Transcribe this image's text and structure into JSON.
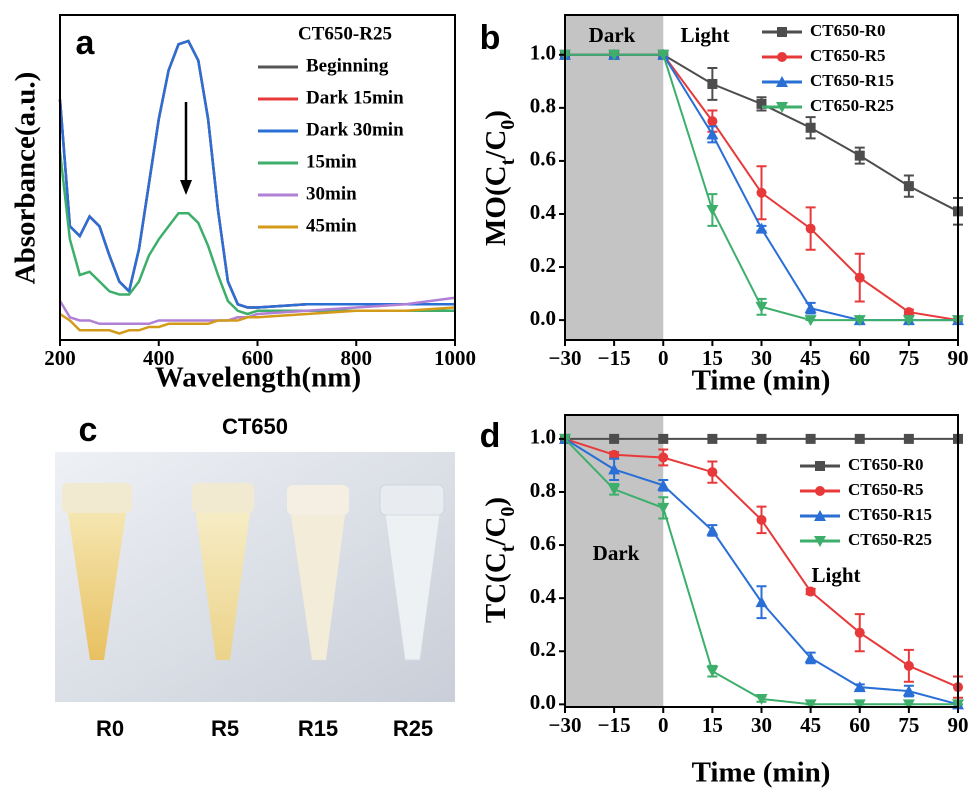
{
  "chart_data": [
    {
      "type": "line",
      "panel_label": "a",
      "x_label": "Wavelength(nm)",
      "y_label": "Absorbance(a.u.)",
      "legend_title": "CT650-R25",
      "x": [
        200,
        220,
        240,
        260,
        280,
        300,
        320,
        340,
        360,
        380,
        400,
        420,
        440,
        460,
        480,
        500,
        520,
        540,
        560,
        580,
        600,
        700,
        800,
        900,
        1000
      ],
      "xlim": [
        200,
        1000
      ],
      "xticks": [
        200,
        400,
        600,
        800,
        1000
      ],
      "ylim": [
        0,
        1
      ],
      "series": [
        {
          "name": "Beginning",
          "color": "#555555",
          "values": [
            0.74,
            0.35,
            0.32,
            0.38,
            0.35,
            0.26,
            0.18,
            0.15,
            0.28,
            0.48,
            0.68,
            0.83,
            0.91,
            0.92,
            0.86,
            0.68,
            0.4,
            0.18,
            0.11,
            0.1,
            0.1,
            0.11,
            0.11,
            0.11,
            0.11
          ]
        },
        {
          "name": "Dark 15min",
          "color": "#e8393a",
          "values": [
            0.74,
            0.35,
            0.32,
            0.38,
            0.35,
            0.26,
            0.18,
            0.15,
            0.28,
            0.48,
            0.68,
            0.83,
            0.91,
            0.92,
            0.86,
            0.68,
            0.4,
            0.18,
            0.11,
            0.1,
            0.1,
            0.11,
            0.11,
            0.11,
            0.11
          ]
        },
        {
          "name": "Dark 30min",
          "color": "#2a6fd6",
          "values": [
            0.74,
            0.35,
            0.32,
            0.38,
            0.35,
            0.26,
            0.18,
            0.15,
            0.28,
            0.48,
            0.68,
            0.83,
            0.91,
            0.92,
            0.86,
            0.68,
            0.4,
            0.18,
            0.11,
            0.1,
            0.1,
            0.11,
            0.11,
            0.11,
            0.11
          ]
        },
        {
          "name": "15min",
          "color": "#3daf6b",
          "values": [
            0.58,
            0.31,
            0.2,
            0.21,
            0.18,
            0.15,
            0.14,
            0.14,
            0.18,
            0.26,
            0.31,
            0.35,
            0.39,
            0.39,
            0.36,
            0.29,
            0.2,
            0.12,
            0.09,
            0.08,
            0.09,
            0.09,
            0.09,
            0.09,
            0.09
          ]
        },
        {
          "name": "30min",
          "color": "#b07fd6",
          "values": [
            0.12,
            0.07,
            0.06,
            0.06,
            0.05,
            0.05,
            0.05,
            0.05,
            0.05,
            0.05,
            0.06,
            0.06,
            0.06,
            0.06,
            0.06,
            0.06,
            0.06,
            0.06,
            0.07,
            0.07,
            0.08,
            0.09,
            0.1,
            0.11,
            0.13
          ]
        },
        {
          "name": "45min",
          "color": "#d49a1a",
          "values": [
            0.08,
            0.06,
            0.03,
            0.03,
            0.03,
            0.03,
            0.02,
            0.03,
            0.03,
            0.04,
            0.04,
            0.05,
            0.05,
            0.05,
            0.05,
            0.05,
            0.06,
            0.06,
            0.06,
            0.07,
            0.07,
            0.08,
            0.09,
            0.09,
            0.1
          ]
        }
      ]
    },
    {
      "type": "line",
      "panel_label": "b",
      "x_label": "Time (min)",
      "y_label": [
        "MO(C",
        "t",
        "/C",
        "0",
        ")"
      ],
      "annotations": [
        "Dark",
        "Light"
      ],
      "dark_span": [
        -30,
        0
      ],
      "x": [
        -30,
        -15,
        0,
        15,
        30,
        45,
        60,
        75,
        90
      ],
      "xlim": [
        -30,
        90
      ],
      "xticks": [
        {
          "value": -30,
          "label": "−30"
        },
        {
          "value": -15,
          "label": "−15"
        },
        0,
        15,
        30,
        45,
        60,
        75,
        90
      ],
      "ylim": [
        -0.075,
        1.15
      ],
      "yticks": [
        {
          "value": 0,
          "label": "0.0"
        },
        0.2,
        0.4,
        0.6,
        0.8,
        {
          "value": 1,
          "label": "1.0"
        }
      ],
      "series": [
        {
          "name": "CT650-R0",
          "color": "#4d4d4d",
          "marker": "square",
          "values": [
            1,
            1,
            1,
            0.89,
            0.815,
            0.725,
            0.62,
            0.505,
            0.41
          ],
          "errors": [
            0,
            0,
            0,
            0.06,
            0.025,
            0.04,
            0.03,
            0.04,
            0.05
          ]
        },
        {
          "name": "CT650-R5",
          "color": "#e8393a",
          "marker": "circle",
          "values": [
            1,
            1,
            1,
            0.75,
            0.48,
            0.345,
            0.16,
            0.03,
            0
          ],
          "errors": [
            0,
            0,
            0,
            0.04,
            0.1,
            0.08,
            0.09,
            0.01,
            0
          ]
        },
        {
          "name": "CT650-R15",
          "color": "#2a6fd6",
          "marker": "triangle-up",
          "values": [
            1,
            1,
            1,
            0.7,
            0.345,
            0.045,
            0,
            0,
            0
          ],
          "errors": [
            0,
            0,
            0,
            0.03,
            0.01,
            0.02,
            0,
            0,
            0
          ]
        },
        {
          "name": "CT650-R25",
          "color": "#3daf6b",
          "marker": "triangle-down",
          "values": [
            1,
            1,
            1,
            0.415,
            0.05,
            0,
            0,
            0,
            0
          ],
          "errors": [
            0,
            0,
            0,
            0.06,
            0.03,
            0,
            0,
            0,
            0
          ]
        }
      ]
    },
    {
      "type": "line",
      "panel_label": "d",
      "x_label": "Time (min)",
      "y_label": [
        "TC(C",
        "t",
        "/C",
        "0",
        ")"
      ],
      "annotations": [
        "Dark",
        "Light"
      ],
      "dark_span": [
        -30,
        0
      ],
      "x": [
        -30,
        -15,
        0,
        15,
        30,
        45,
        60,
        75,
        90
      ],
      "xlim": [
        -30,
        90
      ],
      "xticks": [
        {
          "value": -30,
          "label": "−30"
        },
        {
          "value": -15,
          "label": "−15"
        },
        0,
        15,
        30,
        45,
        60,
        75,
        90
      ],
      "ylim": [
        -0.01,
        1.09
      ],
      "yticks": [
        {
          "value": 0,
          "label": "0.0"
        },
        0.2,
        0.4,
        0.6,
        0.8,
        {
          "value": 1,
          "label": "1.0"
        }
      ],
      "series": [
        {
          "name": "CT650-R0",
          "color": "#4d4d4d",
          "marker": "square",
          "values": [
            1,
            1,
            1,
            1,
            1,
            1,
            1,
            1,
            1
          ],
          "errors": [
            0,
            0,
            0,
            0,
            0,
            0,
            0,
            0,
            0
          ]
        },
        {
          "name": "CT650-R5",
          "color": "#e8393a",
          "marker": "circle",
          "values": [
            1,
            0.94,
            0.93,
            0.875,
            0.695,
            0.425,
            0.27,
            0.145,
            0.065
          ],
          "errors": [
            0,
            0.01,
            0.03,
            0.04,
            0.05,
            0.01,
            0.07,
            0.06,
            0.04
          ]
        },
        {
          "name": "CT650-R15",
          "color": "#2a6fd6",
          "marker": "triangle-up",
          "values": [
            1,
            0.885,
            0.825,
            0.655,
            0.385,
            0.175,
            0.065,
            0.05,
            0
          ],
          "errors": [
            0,
            0.04,
            0.02,
            0.02,
            0.06,
            0.02,
            0.01,
            0.02,
            0
          ]
        },
        {
          "name": "CT650-R25",
          "color": "#3daf6b",
          "marker": "triangle-down",
          "values": [
            1,
            0.81,
            0.74,
            0.125,
            0.02,
            0,
            0,
            0,
            0
          ],
          "errors": [
            0,
            0.02,
            0.04,
            0.02,
            0.01,
            0,
            0,
            0,
            0
          ]
        }
      ]
    }
  ],
  "photo": {
    "panel_label": "c",
    "title": "CT650",
    "samples": [
      "R0",
      "R5",
      "R15",
      "R25"
    ]
  }
}
